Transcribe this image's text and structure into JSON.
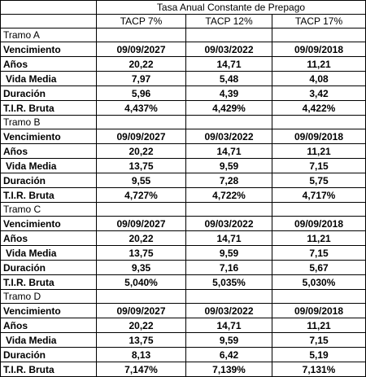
{
  "header": {
    "title": "Tasa Anual Constante de Prepago",
    "columns": [
      "TACP 7%",
      "TACP 12%",
      "TACP 17%"
    ]
  },
  "row_labels": {
    "vencimiento": "Vencimiento",
    "anos": "Años",
    "vida_media": " Vida Media",
    "duracion": "Duración",
    "tir": "T.I.R. Bruta"
  },
  "tramos": [
    {
      "name": "Tramo A",
      "vencimiento": [
        "09/09/2027",
        "09/03/2022",
        "09/09/2018"
      ],
      "anos": [
        "20,22",
        "14,71",
        "11,21"
      ],
      "vida_media": [
        "7,97",
        "5,48",
        "4,08"
      ],
      "duracion": [
        "5,96",
        "4,39",
        "3,42"
      ],
      "tir": [
        "4,437%",
        "4,429%",
        "4,422%"
      ]
    },
    {
      "name": "Tramo B",
      "vencimiento": [
        "09/09/2027",
        "09/03/2022",
        "09/09/2018"
      ],
      "anos": [
        "20,22",
        "14,71",
        "11,21"
      ],
      "vida_media": [
        "13,75",
        "9,59",
        "7,15"
      ],
      "duracion": [
        "9,55",
        "7,28",
        "5,75"
      ],
      "tir": [
        "4,727%",
        "4,722%",
        "4,717%"
      ]
    },
    {
      "name": "Tramo C",
      "vencimiento": [
        "09/09/2027",
        "09/03/2022",
        "09/09/2018"
      ],
      "anos": [
        "20,22",
        "14,71",
        "11,21"
      ],
      "vida_media": [
        "13,75",
        "9,59",
        "7,15"
      ],
      "duracion": [
        "9,35",
        "7,16",
        "5,67"
      ],
      "tir": [
        "5,040%",
        "5,035%",
        "5,030%"
      ]
    },
    {
      "name": "Tramo D",
      "vencimiento": [
        "09/09/2027",
        "09/03/2022",
        "09/09/2018"
      ],
      "anos": [
        "20,22",
        "14,71",
        "11,21"
      ],
      "vida_media": [
        "13,75",
        "9,59",
        "7,15"
      ],
      "duracion": [
        "8,13",
        "6,42",
        "5,19"
      ],
      "tir": [
        "7,147%",
        "7,139%",
        "7,131%"
      ]
    }
  ]
}
